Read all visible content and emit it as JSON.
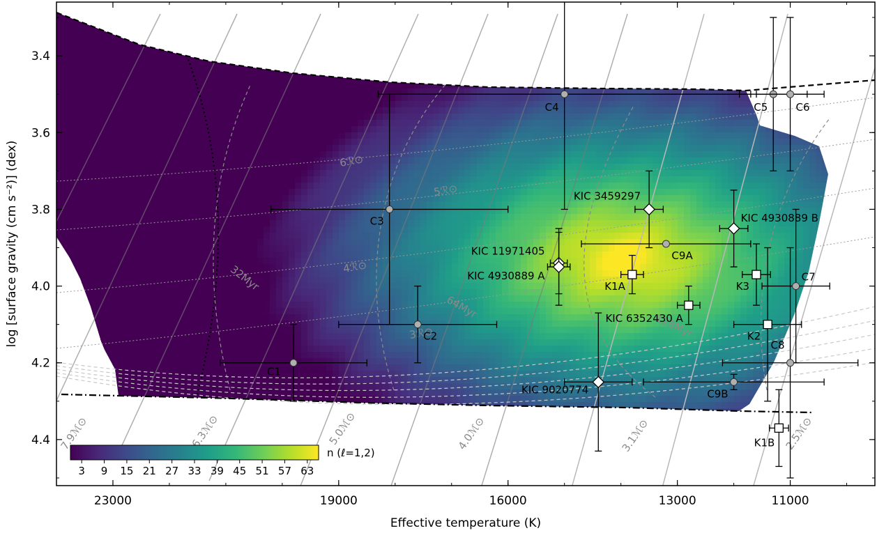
{
  "chart_data": {
    "type": "scatter",
    "xlabel": "Effective temperature (K)",
    "ylabel": "log [surface gravity (cm s⁻²)] (dex)",
    "xlim": [
      24000,
      9500
    ],
    "ylim": [
      4.52,
      3.26
    ],
    "x_ticks": [
      23000,
      19000,
      16000,
      13000,
      11000
    ],
    "y_ticks": [
      3.4,
      3.6,
      3.8,
      4.0,
      4.2,
      4.4
    ],
    "x_tick_labels": [
      "23000",
      "19000",
      "16000",
      "13000",
      "11000"
    ],
    "y_tick_labels": [
      "3.4",
      "3.6",
      "3.8",
      "4.0",
      "4.2",
      "4.4"
    ],
    "colorbar": {
      "label": "n (ℓ=1,2)",
      "ticks": [
        "3",
        "9",
        "15",
        "21",
        "27",
        "33",
        "39",
        "45",
        "51",
        "57",
        "63"
      ],
      "range": [
        0,
        66
      ],
      "colormap": [
        "#440154",
        "#482878",
        "#3e4989",
        "#31688e",
        "#26828e",
        "#1f9e89",
        "#35b779",
        "#6ece58",
        "#b5de2b",
        "#fde725"
      ]
    },
    "series": [
      {
        "marker": "circle",
        "points": [
          {
            "label": "C1",
            "x": 19800,
            "y": 4.2,
            "xerr": 1300,
            "yerr": 0.1
          },
          {
            "label": "C2",
            "x": 17600,
            "y": 4.1,
            "xerr": 1400,
            "yerr": 0.1
          },
          {
            "label": "C3",
            "x": 18100,
            "y": 3.8,
            "xerr": 2100,
            "yerr": 0.3
          },
          {
            "label": "C4",
            "x": 15000,
            "y": 3.5,
            "xerr": 3300,
            "yerr": 0.3
          },
          {
            "label": "C5",
            "x": 11300,
            "y": 3.5,
            "xerr": 600,
            "yerr": 0.2
          },
          {
            "label": "C6",
            "x": 11000,
            "y": 3.5,
            "xerr": 600,
            "yerr": 0.2
          },
          {
            "label": "C7",
            "x": 10900,
            "y": 4.0,
            "xerr": 600,
            "yerr": 0.2
          },
          {
            "label": "C8",
            "x": 11000,
            "y": 4.2,
            "xerr": 1200,
            "yerr": 0.3
          },
          {
            "label": "C9A",
            "x": 13200,
            "y": 3.89,
            "xerr": 1500,
            "yerr": 0.0
          },
          {
            "label": "C9B",
            "x": 12000,
            "y": 4.25,
            "xerr": 1600,
            "yerr": 0.02
          }
        ]
      },
      {
        "marker": "diamond",
        "points": [
          {
            "label": "KIC 3459297",
            "x": 13500,
            "y": 3.8,
            "xerr": 250,
            "yerr": 0.1
          },
          {
            "label": "KIC 4930889 B",
            "x": 12000,
            "y": 3.85,
            "xerr": 250,
            "yerr": 0.1
          },
          {
            "label": "KIC 11971405",
            "x": 15100,
            "y": 3.94,
            "xerr": 150,
            "yerr": 0.08
          },
          {
            "label": "KIC 4930889 A",
            "x": 15100,
            "y": 3.95,
            "xerr": 200,
            "yerr": 0.1
          },
          {
            "label": "KIC 9020774",
            "x": 14400,
            "y": 4.25,
            "xerr": 600,
            "yerr": 0.18
          }
        ]
      },
      {
        "marker": "square",
        "points": [
          {
            "label": "K1A",
            "x": 13800,
            "y": 3.97,
            "xerr": 200,
            "yerr": 0.05
          },
          {
            "label": "KIC 6352430 A",
            "x": 12800,
            "y": 4.05,
            "xerr": 200,
            "yerr": 0.05
          },
          {
            "label": "K3",
            "x": 11600,
            "y": 3.97,
            "xerr": 250,
            "yerr": 0.08
          },
          {
            "label": "K2",
            "x": 11400,
            "y": 4.1,
            "xerr": 600,
            "yerr": 0.2
          },
          {
            "label": "K1B",
            "x": 11200,
            "y": 4.37,
            "xerr": 170,
            "yerr": 0.1
          }
        ]
      }
    ],
    "mass_tracks": [
      "7.9ℳ⊙",
      "6.3ℳ⊙",
      "5.0ℳ⊙",
      "4.0ℳ⊙",
      "3.1ℳ⊙",
      "2.5ℳ⊙"
    ],
    "radius_labels": [
      "6ℛ⊙",
      "5ℛ⊙",
      "4ℛ⊙",
      "3ℛ⊙"
    ],
    "age_labels": [
      "32Myr",
      "64Myr",
      "128Myr"
    ]
  }
}
